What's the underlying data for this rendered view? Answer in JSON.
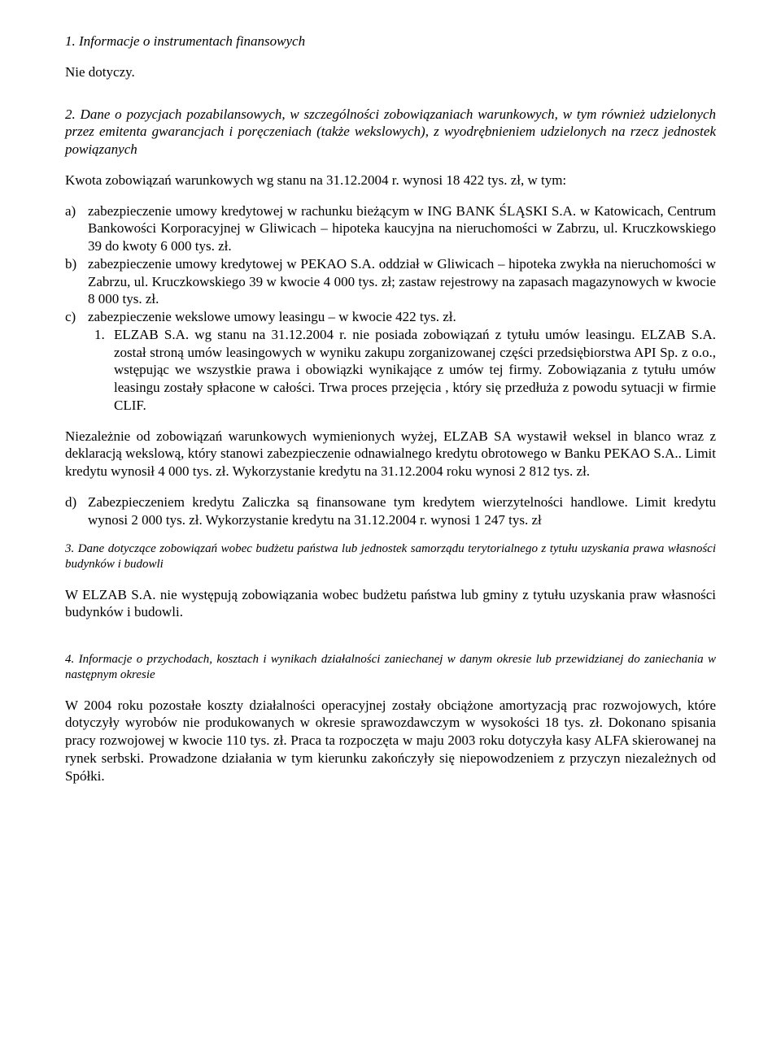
{
  "h1": "1. Informacje o instrumentach finansowych",
  "h1_body": "Nie dotyczy.",
  "h2": "2. Dane o pozycjach pozabilansowych, w szczególności zobowiązaniach warunkowych, w tym również udzielonych przez emitenta gwarancjach i poręczeniach (także wekslowych), z wyodrębnieniem udzielonych na rzecz jednostek powiązanych",
  "kwota": "Kwota zobowiązań warunkowych wg stanu na 31.12.2004 r. wynosi 18 422 tys. zł, w tym:",
  "li_a": "zabezpieczenie umowy kredytowej w rachunku bieżącym w ING BANK ŚLĄSKI S.A. w Katowicach, Centrum Bankowości Korporacyjnej w Gliwicach – hipoteka kaucyjna na nieruchomości w Zabrzu, ul. Kruczkowskiego 39 do kwoty 6 000 tys. zł.",
  "li_b": "zabezpieczenie umowy kredytowej w PEKAO S.A. oddział w Gliwicach – hipoteka zwykła na nieruchomości w Zabrzu, ul. Kruczkowskiego 39 w kwocie 4 000 tys. zł; zastaw rejestrowy na zapasach magazynowych w kwocie 8 000 tys. zł.",
  "li_c": "zabezpieczenie wekslowe umowy leasingu – w kwocie 422 tys. zł.",
  "li_c1": "ELZAB S.A. wg stanu na 31.12.2004 r. nie posiada zobowiązań z tytułu umów leasingu. ELZAB S.A. został stroną umów leasingowych w wyniku zakupu zorganizowanej części przedsiębiorstwa API Sp. z o.o., wstępując we wszystkie prawa i obowiązki wynikające z umów tej firmy. Zobowiązania z tytułu umów leasingu zostały spłacone w całości. Trwa proces przejęcia , który się przedłuża z powodu sytuacji w firmie CLIF.",
  "niez": "Niezależnie od zobowiązań warunkowych wymienionych wyżej, ELZAB SA wystawił weksel in blanco wraz z deklaracją wekslową, który stanowi zabezpieczenie odnawialnego kredytu obrotowego w Banku PEKAO S.A.. Limit kredytu wynosił 4 000 tys. zł. Wykorzystanie kredytu na 31.12.2004 roku wynosi 2 812 tys. zł.",
  "li_d": "Zabezpieczeniem kredytu Zaliczka są finansowane tym kredytem wierzytelności handlowe. Limit kredytu wynosi 2 000 tys. zł. Wykorzystanie kredytu na 31.12.2004 r. wynosi 1 247 tys. zł",
  "h3": "3. Dane dotyczące zobowiązań wobec budżetu państwa lub jednostek samorządu terytorialnego z tytułu uzyskania prawa własności budynków i budowli",
  "h3_body": "W ELZAB S.A. nie występują zobowiązania wobec budżetu państwa lub gminy z tytułu uzyskania praw własności budynków i budowli.",
  "h4": " 4. Informacje o przychodach, kosztach i wynikach działalności zaniechanej w danym okresie lub przewidzianej do zaniechania w następnym okresie",
  "h4_body": "W 2004 roku pozostałe koszty działalności operacyjnej zostały obciążone amortyzacją prac rozwojowych, które dotyczyły wyrobów nie produkowanych w okresie sprawozdawczym w wysokości 18 tys. zł. Dokonano spisania pracy rozwojowej w kwocie 110 tys. zł. Praca ta rozpoczęta w maju 2003 roku dotyczyła kasy ALFA skierowanej na rynek serbski. Prowadzone działania w tym kierunku zakończyły się niepowodzeniem z przyczyn niezależnych od Spółki."
}
